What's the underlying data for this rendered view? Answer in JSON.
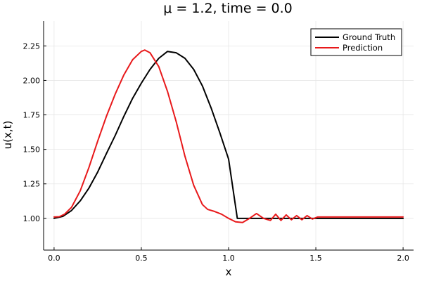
{
  "chart_data": {
    "type": "line",
    "title": "μ = 1.2, time = 0.0",
    "xlabel": "x",
    "ylabel": "u(x,t)",
    "xlim": [
      -0.06,
      2.06
    ],
    "ylim": [
      0.77,
      2.43
    ],
    "x_ticks": [
      0.0,
      0.5,
      1.0,
      1.5,
      2.0
    ],
    "x_tick_labels": [
      "0.0",
      "0.5",
      "1.0",
      "1.5",
      "2.0"
    ],
    "y_ticks": [
      1.0,
      1.25,
      1.5,
      1.75,
      2.0,
      2.25
    ],
    "y_tick_labels": [
      "1.00",
      "1.25",
      "1.50",
      "1.75",
      "2.00",
      "2.25"
    ],
    "grid": true,
    "legend_position": "top-right",
    "series": [
      {
        "name": "Ground Truth",
        "color": "#000000",
        "x": [
          0.0,
          0.05,
          0.1,
          0.15,
          0.2,
          0.25,
          0.3,
          0.35,
          0.4,
          0.45,
          0.5,
          0.55,
          0.6,
          0.65,
          0.7,
          0.75,
          0.8,
          0.85,
          0.9,
          0.95,
          1.0,
          1.05,
          1.2,
          1.4,
          1.6,
          1.8,
          2.0
        ],
        "y": [
          1.0,
          1.014,
          1.057,
          1.127,
          1.22,
          1.336,
          1.47,
          1.6,
          1.74,
          1.87,
          1.98,
          2.08,
          2.16,
          2.21,
          2.2,
          2.16,
          2.08,
          1.96,
          1.8,
          1.62,
          1.43,
          1.0,
          1.0,
          1.0,
          1.0,
          1.0,
          1.0
        ]
      },
      {
        "name": "Prediction",
        "color": "#e8191b",
        "x": [
          0.0,
          0.03,
          0.06,
          0.1,
          0.15,
          0.2,
          0.25,
          0.3,
          0.35,
          0.4,
          0.45,
          0.5,
          0.52,
          0.55,
          0.6,
          0.65,
          0.7,
          0.75,
          0.8,
          0.85,
          0.88,
          0.92,
          0.96,
          1.0,
          1.04,
          1.08,
          1.12,
          1.16,
          1.2,
          1.24,
          1.27,
          1.3,
          1.33,
          1.36,
          1.39,
          1.42,
          1.45,
          1.48,
          1.51,
          1.55,
          1.7,
          1.85,
          2.0
        ],
        "y": [
          1.01,
          1.012,
          1.03,
          1.08,
          1.2,
          1.37,
          1.56,
          1.74,
          1.9,
          2.04,
          2.15,
          2.21,
          2.22,
          2.2,
          2.1,
          1.92,
          1.7,
          1.45,
          1.24,
          1.1,
          1.065,
          1.05,
          1.03,
          1.0,
          0.975,
          0.97,
          1.0,
          1.035,
          1.0,
          0.985,
          1.03,
          0.985,
          1.025,
          0.99,
          1.02,
          0.99,
          1.02,
          0.995,
          1.01,
          1.01,
          1.01,
          1.01,
          1.01
        ]
      }
    ]
  }
}
